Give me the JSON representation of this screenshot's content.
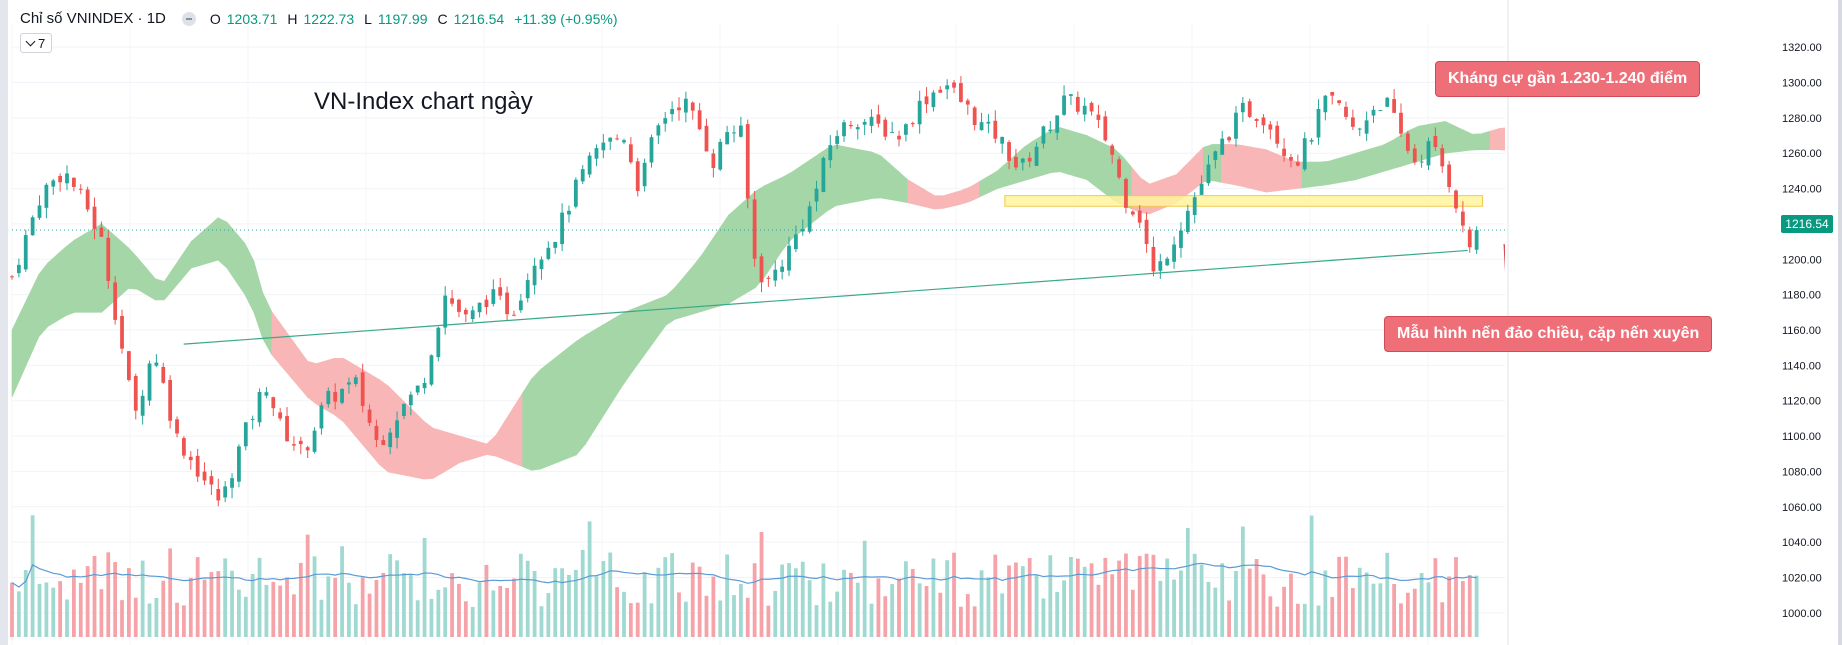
{
  "header": {
    "symbol": "Chỉ số VNINDEX · 1D",
    "o_label": "O",
    "o_value": "1203.71",
    "h_label": "H",
    "h_value": "1222.73",
    "l_label": "L",
    "l_value": "1197.99",
    "c_label": "C",
    "c_value": "1216.54",
    "change": "+11.39 (+0.95%)"
  },
  "indicator_button": {
    "label": "7"
  },
  "annotations": {
    "title_note": "VN-Index chart ngày",
    "resistance_callout": "Kháng cự gần 1.230-1.240 điểm",
    "pattern_callout": "Mẫu hình nến đảo chiều, cặp nến xuyên"
  },
  "last_price_label": "1216.54",
  "colors": {
    "up": "#26a69a",
    "down": "#ef5350",
    "cloud_bull": "#a5d6a7",
    "cloud_bear": "#f8b6b6",
    "trendline": "#3aa88a",
    "volume_ma": "#5b9bd5",
    "resistance_zone": "#fff59d",
    "callout": "#ef6f79"
  },
  "chart_data": {
    "type": "candlestick",
    "interval": "1D",
    "ylim": [
      992,
      1328
    ],
    "y_ticks": [
      "1320.00",
      "1300.00",
      "1280.00",
      "1260.00",
      "1240.00",
      "1220.00",
      "1200.00",
      "1180.00",
      "1160.00",
      "1140.00",
      "1120.00",
      "1100.00",
      "1080.00",
      "1060.00",
      "1040.00",
      "1020.00",
      "1000.00"
    ],
    "last_close": 1216.54,
    "resistance_zone": [
      1230,
      1236
    ],
    "trendline": {
      "from": [
        0.115,
        1152
      ],
      "to": [
        0.975,
        1205
      ]
    },
    "close_path": [
      [
        0,
        1190
      ],
      [
        0.02,
        1238
      ],
      [
        0.035,
        1250
      ],
      [
        0.05,
        1230
      ],
      [
        0.06,
        1210
      ],
      [
        0.072,
        1158
      ],
      [
        0.082,
        1110
      ],
      [
        0.095,
        1150
      ],
      [
        0.11,
        1100
      ],
      [
        0.125,
        1080
      ],
      [
        0.14,
        1062
      ],
      [
        0.155,
        1100
      ],
      [
        0.17,
        1130
      ],
      [
        0.18,
        1105
      ],
      [
        0.195,
        1090
      ],
      [
        0.21,
        1120
      ],
      [
        0.23,
        1130
      ],
      [
        0.245,
        1095
      ],
      [
        0.26,
        1115
      ],
      [
        0.275,
        1130
      ],
      [
        0.29,
        1180
      ],
      [
        0.305,
        1165
      ],
      [
        0.32,
        1180
      ],
      [
        0.335,
        1170
      ],
      [
        0.35,
        1200
      ],
      [
        0.365,
        1215
      ],
      [
        0.38,
        1245
      ],
      [
        0.395,
        1265
      ],
      [
        0.41,
        1270
      ],
      [
        0.42,
        1240
      ],
      [
        0.43,
        1270
      ],
      [
        0.44,
        1285
      ],
      [
        0.45,
        1290
      ],
      [
        0.46,
        1275
      ],
      [
        0.47,
        1255
      ],
      [
        0.48,
        1275
      ],
      [
        0.49,
        1270
      ],
      [
        0.495,
        1205
      ],
      [
        0.505,
        1185
      ],
      [
        0.52,
        1205
      ],
      [
        0.535,
        1230
      ],
      [
        0.55,
        1270
      ],
      [
        0.565,
        1280
      ],
      [
        0.58,
        1275
      ],
      [
        0.595,
        1270
      ],
      [
        0.61,
        1290
      ],
      [
        0.625,
        1300
      ],
      [
        0.64,
        1285
      ],
      [
        0.65,
        1275
      ],
      [
        0.66,
        1270
      ],
      [
        0.675,
        1250
      ],
      [
        0.69,
        1270
      ],
      [
        0.705,
        1290
      ],
      [
        0.72,
        1285
      ],
      [
        0.735,
        1265
      ],
      [
        0.745,
        1235
      ],
      [
        0.755,
        1225
      ],
      [
        0.765,
        1190
      ],
      [
        0.78,
        1215
      ],
      [
        0.795,
        1240
      ],
      [
        0.81,
        1265
      ],
      [
        0.825,
        1285
      ],
      [
        0.84,
        1280
      ],
      [
        0.85,
        1265
      ],
      [
        0.86,
        1255
      ],
      [
        0.87,
        1270
      ],
      [
        0.88,
        1290
      ],
      [
        0.89,
        1285
      ],
      [
        0.9,
        1270
      ],
      [
        0.91,
        1285
      ],
      [
        0.92,
        1290
      ],
      [
        0.93,
        1270
      ],
      [
        0.94,
        1255
      ],
      [
        0.95,
        1265
      ],
      [
        0.955,
        1258
      ],
      [
        0.965,
        1240
      ],
      [
        0.975,
        1205
      ],
      [
        0.981,
        1216.54
      ]
    ],
    "cloud_upper": [
      [
        0,
        1160
      ],
      [
        0.02,
        1195
      ],
      [
        0.04,
        1210
      ],
      [
        0.06,
        1220
      ],
      [
        0.08,
        1205
      ],
      [
        0.1,
        1185
      ],
      [
        0.12,
        1210
      ],
      [
        0.14,
        1225
      ],
      [
        0.16,
        1205
      ],
      [
        0.17,
        1175
      ],
      [
        0.2,
        1140
      ],
      [
        0.22,
        1145
      ],
      [
        0.25,
        1130
      ],
      [
        0.28,
        1105
      ],
      [
        0.3,
        1100
      ],
      [
        0.32,
        1095
      ],
      [
        0.35,
        1135
      ],
      [
        0.38,
        1155
      ],
      [
        0.41,
        1170
      ],
      [
        0.44,
        1180
      ],
      [
        0.46,
        1200
      ],
      [
        0.48,
        1225
      ],
      [
        0.5,
        1240
      ],
      [
        0.52,
        1248
      ],
      [
        0.55,
        1265
      ],
      [
        0.58,
        1260
      ],
      [
        0.6,
        1245
      ],
      [
        0.62,
        1235
      ],
      [
        0.64,
        1240
      ],
      [
        0.66,
        1250
      ],
      [
        0.68,
        1265
      ],
      [
        0.7,
        1275
      ],
      [
        0.72,
        1270
      ],
      [
        0.74,
        1262
      ],
      [
        0.76,
        1242
      ],
      [
        0.78,
        1248
      ],
      [
        0.8,
        1265
      ],
      [
        0.82,
        1265
      ],
      [
        0.84,
        1262
      ],
      [
        0.86,
        1255
      ],
      [
        0.88,
        1255
      ],
      [
        0.9,
        1260
      ],
      [
        0.92,
        1265
      ],
      [
        0.94,
        1275
      ],
      [
        0.96,
        1278
      ],
      [
        0.98,
        1270
      ]
    ],
    "cloud_lower": [
      [
        0,
        1122
      ],
      [
        0.02,
        1160
      ],
      [
        0.04,
        1170
      ],
      [
        0.06,
        1170
      ],
      [
        0.08,
        1185
      ],
      [
        0.1,
        1175
      ],
      [
        0.12,
        1195
      ],
      [
        0.14,
        1200
      ],
      [
        0.16,
        1175
      ],
      [
        0.17,
        1150
      ],
      [
        0.2,
        1120
      ],
      [
        0.22,
        1110
      ],
      [
        0.25,
        1080
      ],
      [
        0.28,
        1075
      ],
      [
        0.3,
        1085
      ],
      [
        0.32,
        1090
      ],
      [
        0.35,
        1080
      ],
      [
        0.38,
        1090
      ],
      [
        0.41,
        1130
      ],
      [
        0.44,
        1165
      ],
      [
        0.46,
        1170
      ],
      [
        0.48,
        1175
      ],
      [
        0.5,
        1185
      ],
      [
        0.52,
        1210
      ],
      [
        0.55,
        1230
      ],
      [
        0.58,
        1235
      ],
      [
        0.6,
        1232
      ],
      [
        0.62,
        1228
      ],
      [
        0.64,
        1232
      ],
      [
        0.66,
        1240
      ],
      [
        0.68,
        1245
      ],
      [
        0.7,
        1250
      ],
      [
        0.72,
        1245
      ],
      [
        0.74,
        1232
      ],
      [
        0.76,
        1225
      ],
      [
        0.78,
        1232
      ],
      [
        0.8,
        1245
      ],
      [
        0.82,
        1242
      ],
      [
        0.84,
        1238
      ],
      [
        0.86,
        1240
      ],
      [
        0.88,
        1242
      ],
      [
        0.9,
        1245
      ],
      [
        0.92,
        1250
      ],
      [
        0.94,
        1255
      ],
      [
        0.96,
        1260
      ],
      [
        0.98,
        1262
      ]
    ],
    "bear_cloud_segments": [
      [
        0.17,
        0.34
      ],
      [
        0.595,
        0.645
      ],
      [
        0.745,
        0.795
      ],
      [
        0.81,
        0.86
      ],
      [
        0.985,
        1.08
      ]
    ],
    "future_cloud_upper": [
      [
        1.0,
        1275
      ],
      [
        1.02,
        1270
      ],
      [
        1.04,
        1262
      ],
      [
        1.06,
        1250
      ],
      [
        1.08,
        1240
      ]
    ],
    "future_cloud_lower": [
      [
        1.0,
        1262
      ],
      [
        1.02,
        1258
      ],
      [
        1.04,
        1255
      ],
      [
        1.06,
        1248
      ],
      [
        1.08,
        1240
      ]
    ]
  }
}
